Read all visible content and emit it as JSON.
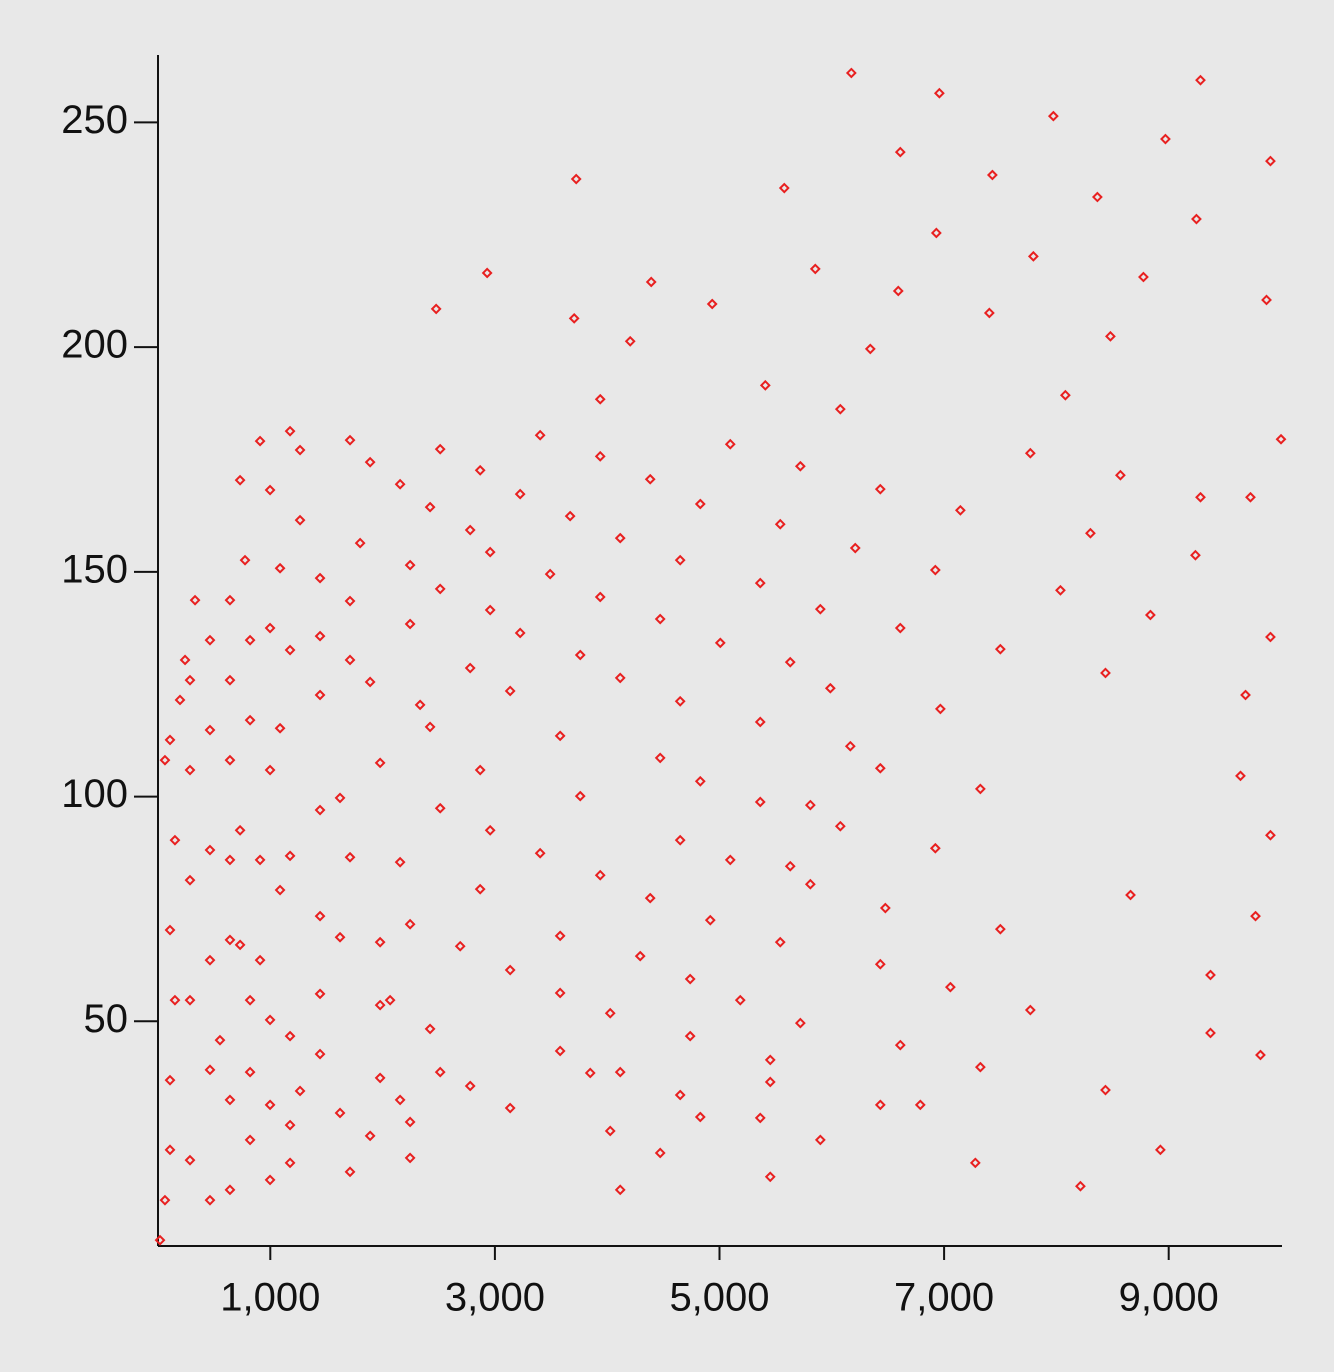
{
  "chart_data": {
    "type": "scatter",
    "color": "#e82020",
    "xlim": [
      0,
      10000
    ],
    "ylim": [
      0,
      265
    ],
    "xticks": [
      {
        "value": 1000,
        "label": "1,000"
      },
      {
        "value": 3000,
        "label": "3,000"
      },
      {
        "value": 5000,
        "label": "5,000"
      },
      {
        "value": 7000,
        "label": "7,000"
      },
      {
        "value": 9000,
        "label": "9,000"
      }
    ],
    "yticks": [
      50,
      100,
      150,
      200,
      250
    ],
    "x": [
      6174,
      6958,
      9283,
      7973,
      8971,
      9906,
      6610,
      3724,
      5577,
      7430,
      8365,
      6931,
      9247,
      7795,
      5853,
      2931,
      4392,
      8775,
      2477,
      3706,
      4935,
      6592,
      7403,
      9871,
      10000,
      9728,
      9283,
      9238,
      8837,
      9906,
      9684,
      9639,
      9906,
      9773,
      9372,
      9817,
      9372,
      8926,
      8214,
      8437,
      8660,
      8437,
      8036,
      8303,
      8570,
      8080,
      8481,
      7768,
      7145,
      6922,
      7501,
      6967,
      7323,
      6922,
      7501,
      7056,
      7768,
      7323,
      6788,
      7278,
      6610,
      6477,
      6432,
      6610,
      6432,
      6209,
      6076,
      6343,
      5987,
      5898,
      6165,
      5809,
      6076,
      6432,
      5809,
      5720,
      5452,
      5898,
      6432,
      5630,
      5541,
      5452,
      5363,
      5452,
      5185,
      5096,
      5363,
      5363,
      5630,
      5363,
      5541,
      5720,
      5096,
      5408,
      4829,
      4650,
      5007,
      4650,
      4472,
      4829,
      4650,
      4918,
      4739,
      4739,
      4650,
      4829,
      4472,
      4383,
      4294,
      4116,
      4027,
      4116,
      4027,
      3938,
      4116,
      4472,
      3938,
      4116,
      4383,
      3938,
      4205,
      3938,
      3581,
      3760,
      3670,
      3760,
      3581,
      3849,
      3581,
      3581,
      3403,
      3225,
      3492,
      3403,
      3225,
      2958,
      2958,
      3136,
      3136,
      3136,
      2958,
      2869,
      2869,
      2780,
      2780,
      2869,
      2513,
      2513,
      2513,
      2691,
      2780,
      2423,
      2245,
      2245,
      2513,
      2423,
      2334,
      2245,
      2245,
      2156,
      2423,
      2156,
      2245,
      2067,
      2156,
      1978,
      1978,
      1978,
      1889,
      1978,
      1889,
      1800,
      1889,
      1710,
      1710,
      1710,
      1621,
      1710,
      1621,
      1621,
      1710,
      1443,
      1443,
      1443,
      1443,
      1443,
      1443,
      1443,
      1265,
      1265,
      1176,
      1265,
      1176,
      1176,
      1176,
      1087,
      1087,
      1176,
      1176,
      998,
      998,
      998,
      909,
      909,
      998,
      998,
      1087,
      998,
      909,
      820,
      820,
      820,
      731,
      731,
      820,
      820,
      775,
      731,
      641,
      641,
      552,
      641,
      641,
      641,
      641,
      641,
      463,
      463,
      463,
      463,
      463,
      463,
      330,
      285,
      285,
      285,
      285,
      285,
      18,
      62,
      107,
      107,
      151,
      107,
      151,
      62,
      107,
      196,
      241
    ],
    "y": [
      261,
      256.5,
      259.4,
      251.4,
      246.3,
      241.4,
      243.4,
      237.4,
      235.4,
      238.3,
      233.4,
      225.4,
      228.5,
      220.2,
      217.4,
      216.5,
      214.5,
      215.6,
      208.5,
      206.4,
      209.6,
      212.5,
      207.6,
      210.5,
      179.5,
      166.6,
      166.6,
      153.7,
      140.4,
      135.5,
      122.6,
      104.6,
      91.4,
      73.4,
      60.3,
      42.5,
      47.4,
      21.4,
      13.3,
      34.7,
      78.1,
      127.5,
      145.9,
      158.6,
      171.5,
      189.3,
      202.4,
      176.4,
      163.7,
      150.4,
      132.8,
      119.5,
      101.7,
      88.5,
      70.5,
      57.6,
      52.5,
      39.8,
      31.4,
      18.5,
      44.7,
      75.2,
      106.3,
      137.5,
      168.4,
      155.3,
      186.2,
      199.6,
      124.1,
      141.7,
      111.2,
      98.1,
      93.4,
      62.7,
      80.5,
      49.6,
      36.5,
      23.6,
      31.4,
      84.5,
      67.6,
      41.4,
      28.5,
      15.4,
      54.7,
      85.9,
      98.8,
      116.6,
      129.9,
      147.5,
      160.6,
      173.5,
      178.4,
      191.5,
      165.1,
      152.6,
      134.2,
      121.2,
      108.6,
      103.4,
      90.3,
      72.5,
      59.4,
      46.7,
      33.6,
      28.7,
      20.7,
      77.4,
      64.5,
      38.7,
      25.6,
      12.5,
      51.8,
      82.5,
      126.4,
      139.5,
      144.4,
      157.5,
      170.6,
      175.7,
      201.3,
      188.4,
      113.5,
      131.5,
      162.4,
      100.1,
      69,
      38.5,
      43.4,
      56.3,
      87.4,
      136.4,
      149.5,
      180.4,
      167.3,
      154.4,
      141.5,
      123.5,
      30.7,
      61.4,
      92.5,
      105.9,
      79.4,
      128.6,
      159.3,
      172.6,
      177.3,
      146.2,
      97.4,
      66.7,
      35.6,
      48.3,
      27.6,
      19.6,
      38.7,
      115.5,
      120.4,
      138.4,
      151.5,
      169.5,
      164.4,
      85.4,
      71.6,
      54.7,
      32.5,
      53.6,
      67.6,
      37.4,
      24.5,
      107.5,
      125.5,
      156.4,
      174.4,
      179.3,
      143.5,
      130.4,
      99.7,
      86.5,
      68.7,
      29.6,
      16.5,
      42.7,
      56.1,
      73.4,
      97,
      122.6,
      135.7,
      148.6,
      161.5,
      177.1,
      46.7,
      34.5,
      26.9,
      18.5,
      86.8,
      79.2,
      115.2,
      132.6,
      181.3,
      14.7,
      31.4,
      50.3,
      63.6,
      85.9,
      105.9,
      137.5,
      150.8,
      168.2,
      179.1,
      23.6,
      38.7,
      54.7,
      67,
      92.5,
      117,
      134.8,
      152.6,
      170.4,
      12.5,
      32.5,
      45.8,
      68.1,
      85.9,
      108.1,
      125.9,
      143.7,
      10.2,
      39.2,
      63.6,
      88.1,
      114.8,
      134.8,
      143.7,
      19.1,
      54.7,
      81.4,
      105.9,
      125.9,
      1.3,
      10.2,
      21.4,
      36.9,
      54.7,
      70.3,
      90.3,
      108.1,
      112.6,
      121.5,
      130.4
    ]
  }
}
